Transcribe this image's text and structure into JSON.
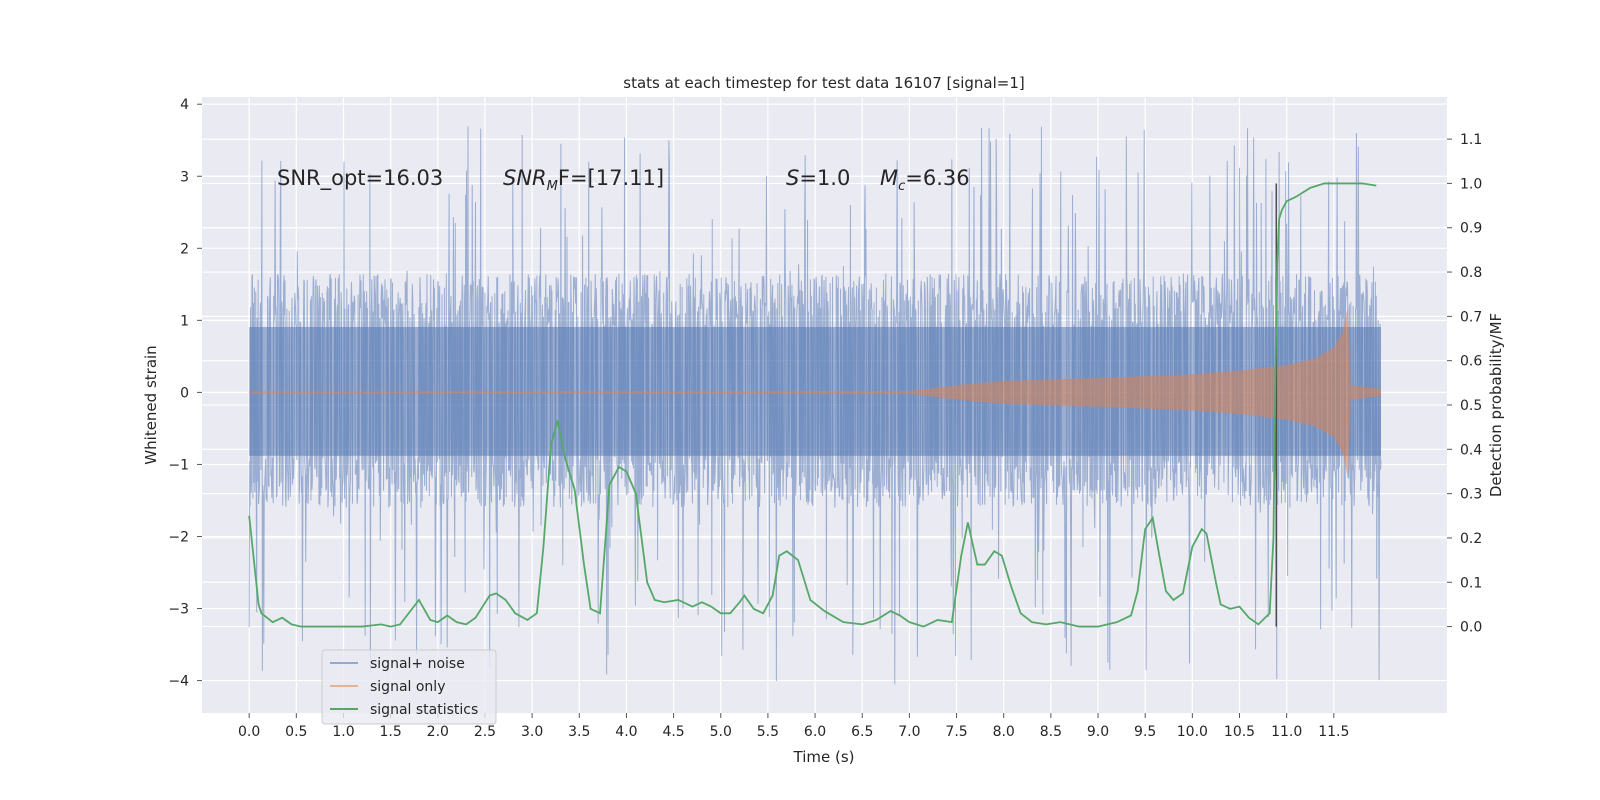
{
  "chart_data": {
    "type": "line",
    "title": "stats at each timestep for test data 16107 [signal=1]",
    "xlabel": "Time (s)",
    "ylabel_left": "Whitened strain",
    "ylabel_right": "Detection probability/MF",
    "xlim": [
      -0.5,
      12.7
    ],
    "ylim_left": [
      -4.45,
      4.1
    ],
    "ylim_right": [
      -0.195,
      1.195
    ],
    "grid": true,
    "legend_position": "lower-left",
    "x_ticks": [
      "0.0",
      "0.5",
      "1.0",
      "1.5",
      "2.0",
      "2.5",
      "3.0",
      "3.5",
      "4.0",
      "4.5",
      "5.0",
      "5.5",
      "6.0",
      "6.5",
      "7.0",
      "7.5",
      "8.0",
      "8.5",
      "9.0",
      "9.5",
      "10.0",
      "10.5",
      "11.0",
      "11.5"
    ],
    "y_ticks_left": [
      "4",
      "3",
      "2",
      "1",
      "0",
      "−1",
      "−2",
      "−3",
      "−4"
    ],
    "y_ticks_right": [
      "1.1",
      "1.0",
      "0.9",
      "0.8",
      "0.7",
      "0.6",
      "0.5",
      "0.4",
      "0.3",
      "0.2",
      "0.1",
      "0.0"
    ],
    "annotations": {
      "snr_opt": "SNR_opt=16.03",
      "snr_mf_main": "SNR",
      "snr_mf_sub": "M",
      "snr_mf_rest": "F=[17.11]",
      "s_main": "S",
      "s_rest": "=1.0",
      "mc_main": "M",
      "mc_sub": "c",
      "mc_rest": "=6.36"
    },
    "marker_x": 10.89,
    "series": [
      {
        "name": "signal+ noise",
        "color": "#4c72b0",
        "t_range": [
          0.0,
          12.0
        ],
        "envelope": {
          "t": [
            0.0,
            12.0
          ],
          "upper_typical": 1.65,
          "lower_typical": -1.6,
          "max_spike": 3.72,
          "min_spike": -4.08
        }
      },
      {
        "name": "signal only",
        "color": "#dd8452",
        "envelope": {
          "t": [
            0.0,
            7.0,
            7.5,
            8.0,
            9.0,
            10.0,
            10.5,
            11.0,
            11.3,
            11.5,
            11.6,
            11.65,
            11.68,
            12.0
          ],
          "amp": [
            0.015,
            0.02,
            0.1,
            0.16,
            0.2,
            0.25,
            0.3,
            0.38,
            0.47,
            0.62,
            0.85,
            1.2,
            0.1,
            0.05
          ]
        }
      },
      {
        "name": "signal statistics",
        "color": "#55a868",
        "x": [
          0.0,
          0.1,
          0.13,
          0.25,
          0.35,
          0.45,
          0.55,
          0.7,
          0.85,
          1.0,
          1.2,
          1.4,
          1.5,
          1.6,
          1.8,
          1.92,
          2.0,
          2.1,
          2.2,
          2.3,
          2.4,
          2.55,
          2.62,
          2.72,
          2.82,
          2.95,
          3.05,
          3.12,
          3.2,
          3.27,
          3.35,
          3.45,
          3.55,
          3.62,
          3.72,
          3.82,
          3.92,
          4.0,
          4.1,
          4.22,
          4.3,
          4.4,
          4.55,
          4.7,
          4.8,
          4.9,
          5.0,
          5.1,
          5.2,
          5.25,
          5.35,
          5.45,
          5.55,
          5.62,
          5.7,
          5.82,
          5.95,
          6.1,
          6.3,
          6.5,
          6.65,
          6.8,
          6.9,
          7.0,
          7.15,
          7.3,
          7.45,
          7.55,
          7.62,
          7.72,
          7.8,
          7.9,
          7.98,
          8.08,
          8.18,
          8.3,
          8.45,
          8.6,
          8.8,
          9.0,
          9.2,
          9.35,
          9.42,
          9.5,
          9.58,
          9.65,
          9.72,
          9.8,
          9.9,
          10.0,
          10.1,
          10.15,
          10.25,
          10.3,
          10.4,
          10.5,
          10.6,
          10.7,
          10.82,
          10.86,
          10.88,
          10.9,
          10.92,
          10.95,
          11.0,
          11.1,
          11.25,
          11.4,
          11.6,
          11.8,
          11.95
        ],
        "values": [
          0.25,
          0.05,
          0.03,
          0.01,
          0.02,
          0.005,
          0.0,
          0.0,
          0.0,
          0.0,
          0.0,
          0.005,
          0.0,
          0.005,
          0.06,
          0.015,
          0.01,
          0.025,
          0.01,
          0.005,
          0.02,
          0.07,
          0.075,
          0.06,
          0.03,
          0.015,
          0.03,
          0.18,
          0.41,
          0.465,
          0.38,
          0.31,
          0.14,
          0.04,
          0.03,
          0.32,
          0.36,
          0.35,
          0.3,
          0.1,
          0.06,
          0.055,
          0.06,
          0.045,
          0.055,
          0.045,
          0.03,
          0.03,
          0.055,
          0.07,
          0.04,
          0.03,
          0.07,
          0.16,
          0.17,
          0.15,
          0.06,
          0.035,
          0.01,
          0.005,
          0.015,
          0.035,
          0.025,
          0.01,
          0.0,
          0.015,
          0.01,
          0.16,
          0.235,
          0.14,
          0.14,
          0.17,
          0.16,
          0.09,
          0.03,
          0.01,
          0.005,
          0.01,
          0.0,
          0.0,
          0.01,
          0.025,
          0.08,
          0.22,
          0.245,
          0.16,
          0.08,
          0.06,
          0.075,
          0.18,
          0.22,
          0.21,
          0.1,
          0.05,
          0.04,
          0.045,
          0.02,
          0.005,
          0.03,
          0.2,
          0.56,
          0.82,
          0.92,
          0.94,
          0.96,
          0.97,
          0.99,
          1.0,
          1.0,
          1.0,
          0.995
        ]
      }
    ],
    "legend": [
      "signal+ noise",
      "signal only",
      "signal statistics"
    ]
  }
}
